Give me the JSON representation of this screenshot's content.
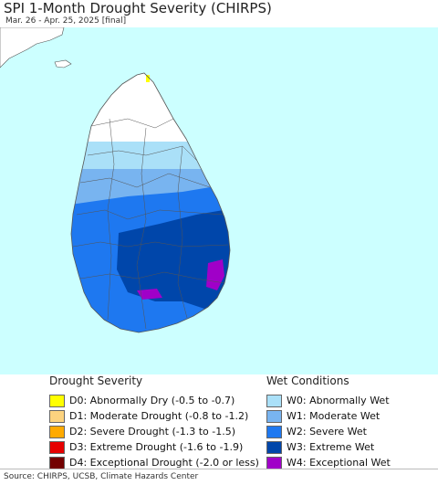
{
  "header": {
    "title": "SPI 1-Month Drought Severity (CHIRPS)",
    "subtitle": "Mar. 26 - Apr. 25, 2025 [final]"
  },
  "map": {
    "ocean_color": "#ccffff",
    "land_white": "#ffffff",
    "border_color": "#555555"
  },
  "legend": {
    "drought": {
      "title": "Drought Severity",
      "items": [
        {
          "label": "D0: Abnormally Dry (-0.5 to -0.7)",
          "color": "#ffff00"
        },
        {
          "label": "D1: Moderate Drought (-0.8 to -1.2)",
          "color": "#fcd37f"
        },
        {
          "label": "D2: Severe Drought (-1.3 to -1.5)",
          "color": "#ffaa00"
        },
        {
          "label": "D3: Extreme Drought (-1.6 to -1.9)",
          "color": "#e60000"
        },
        {
          "label": "D4: Exceptional Drought (-2.0 or less)",
          "color": "#730000"
        }
      ]
    },
    "wet": {
      "title": "Wet Conditions",
      "items": [
        {
          "label": "W0: Abnormally Wet",
          "color": "#aae0f8"
        },
        {
          "label": "W1: Moderate Wet",
          "color": "#78b4f0"
        },
        {
          "label": "W2: Severe Wet",
          "color": "#1e78f0"
        },
        {
          "label": "W3: Extreme Wet",
          "color": "#0046aa"
        },
        {
          "label": "W4: Exceptional Wet",
          "color": "#a000c8"
        }
      ]
    }
  },
  "footer": {
    "source": "Source: CHIRPS, UCSB, Climate Hazards Center"
  }
}
